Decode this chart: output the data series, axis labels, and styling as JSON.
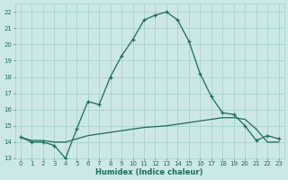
{
  "line1_x": [
    0,
    1,
    2,
    3,
    4,
    5,
    6,
    7,
    8,
    9,
    10,
    11,
    12,
    13,
    14,
    15,
    16,
    17,
    18,
    19,
    20,
    21,
    22,
    23
  ],
  "line1_y": [
    14.3,
    14.0,
    14.0,
    13.8,
    13.0,
    14.8,
    16.5,
    16.3,
    18.0,
    19.3,
    20.3,
    21.5,
    21.8,
    22.0,
    21.5,
    20.2,
    18.2,
    16.8,
    15.8,
    15.7,
    15.0,
    14.1,
    14.4,
    14.2
  ],
  "line2_x": [
    0,
    1,
    2,
    3,
    4,
    5,
    6,
    7,
    8,
    9,
    10,
    11,
    12,
    13,
    14,
    15,
    16,
    17,
    18,
    19,
    20,
    21,
    22,
    23
  ],
  "line2_y": [
    14.3,
    14.1,
    14.1,
    14.0,
    14.0,
    14.2,
    14.4,
    14.5,
    14.6,
    14.7,
    14.8,
    14.9,
    14.95,
    15.0,
    15.1,
    15.2,
    15.3,
    15.4,
    15.5,
    15.5,
    15.4,
    14.8,
    14.0,
    14.0
  ],
  "line_color": "#1a6b5a",
  "bg_color": "#cce8e6",
  "grid_color": "#a0ccc8",
  "xlabel": "Humidex (Indice chaleur)",
  "ylim": [
    13,
    22.5
  ],
  "xlim": [
    -0.5,
    23.5
  ],
  "yticks": [
    13,
    14,
    15,
    16,
    17,
    18,
    19,
    20,
    21,
    22
  ],
  "xticks": [
    0,
    1,
    2,
    3,
    4,
    5,
    6,
    7,
    8,
    9,
    10,
    11,
    12,
    13,
    14,
    15,
    16,
    17,
    18,
    19,
    20,
    21,
    22,
    23
  ],
  "xlabel_fontsize": 6.0,
  "tick_fontsize": 5.0
}
